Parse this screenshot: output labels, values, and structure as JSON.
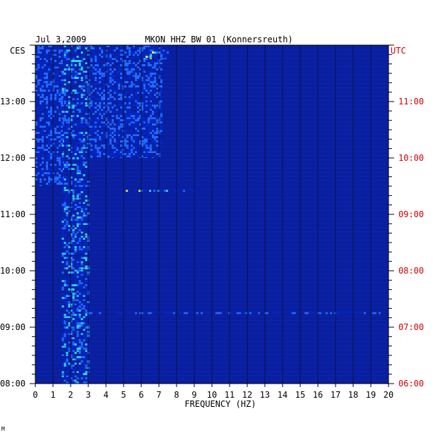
{
  "chart_data": {
    "type": "heatmap",
    "title": "MKON HHZ BW 01 (Konnersreuth)",
    "date": "Jul 3,2009",
    "xlabel": "FREQUENCY (HZ)",
    "x_ticks": [
      "0",
      "1",
      "2",
      "3",
      "4",
      "5",
      "6",
      "7",
      "8",
      "9",
      "10",
      "11",
      "12",
      "13",
      "14",
      "15",
      "16",
      "17",
      "18",
      "19",
      "20"
    ],
    "xlim": [
      0,
      20
    ],
    "left_axis": {
      "label": "CES",
      "ticks": [
        "13:00",
        "12:00",
        "11:00",
        "10:00",
        "09:00",
        "08:00"
      ],
      "range": [
        "08:00",
        "14:00"
      ]
    },
    "right_axis": {
      "label": "UTC",
      "ticks": [
        "11:00",
        "10:00",
        "09:00",
        "08:00",
        "07:00",
        "06:00"
      ],
      "range": [
        "06:00",
        "12:00"
      ]
    },
    "colormap": {
      "background": "#0a1fa0",
      "low": "#0026c8",
      "mid": "#1e6cff",
      "high": "#32d2e6",
      "peak": "#e6e632",
      "max": "#e63c1e"
    },
    "bands": [
      {
        "freq_hz": [
          1.5,
          3.0
        ],
        "time_ces": [
          "08:00",
          "14:00"
        ],
        "intensity": "high"
      },
      {
        "freq_hz": [
          0.0,
          1.5
        ],
        "time_ces": [
          "11:30",
          "14:00"
        ],
        "intensity": "mid"
      },
      {
        "freq_hz": [
          3.0,
          7.2
        ],
        "time_ces": [
          "12:00",
          "14:00"
        ],
        "intensity": "mid"
      },
      {
        "freq_hz": [
          6.0,
          7.5
        ],
        "time_ces": [
          "13:45",
          "14:00"
        ],
        "intensity": "peak"
      },
      {
        "freq_hz": [
          5.0,
          9.0
        ],
        "time_ces": [
          "11:24",
          "11:26"
        ],
        "intensity": "peak"
      },
      {
        "freq_hz": [
          3.0,
          20.0
        ],
        "time_ces": [
          "09:14",
          "09:16"
        ],
        "intensity": "mid"
      }
    ],
    "grid": true
  },
  "footer": {
    "mark": "M"
  }
}
